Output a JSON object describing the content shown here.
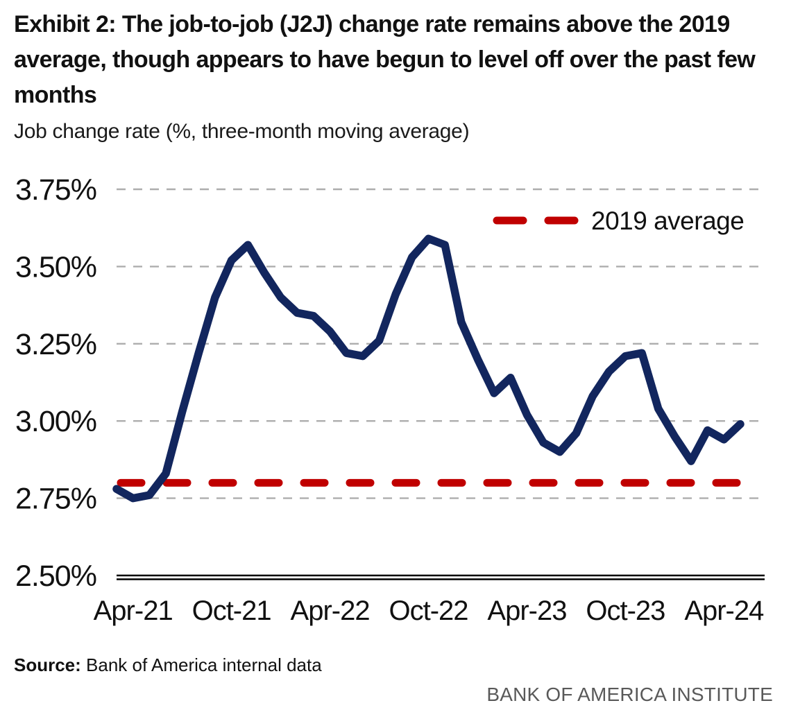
{
  "exhibit": {
    "title": "Exhibit 2: The job-to-job (J2J) change rate remains above the 2019 average, though appears to have begun to level off over the past few months",
    "subtitle": "Job change rate (%, three-month moving average)",
    "source_label": "Source:",
    "source_text": "Bank of America internal data",
    "brand_footer": "BANK OF AMERICA INSTITUTE"
  },
  "colors": {
    "series_line": "#12265E",
    "reference_line": "#C00000",
    "gridline": "#ADADAD",
    "axis": "#000000",
    "text": "#111111",
    "footer_gray": "#595959"
  },
  "chart_data": {
    "type": "line",
    "title": "Job change rate (%, three-month moving average)",
    "x": [
      "Mar-21",
      "Apr-21",
      "May-21",
      "Jun-21",
      "Jul-21",
      "Aug-21",
      "Sep-21",
      "Oct-21",
      "Nov-21",
      "Dec-21",
      "Jan-22",
      "Feb-22",
      "Mar-22",
      "Apr-22",
      "May-22",
      "Jun-22",
      "Jul-22",
      "Aug-22",
      "Sep-22",
      "Oct-22",
      "Nov-22",
      "Dec-22",
      "Jan-23",
      "Feb-23",
      "Mar-23",
      "Apr-23",
      "May-23",
      "Jun-23",
      "Jul-23",
      "Aug-23",
      "Sep-23",
      "Oct-23",
      "Nov-23",
      "Dec-23",
      "Jan-24",
      "Feb-24",
      "Mar-24",
      "Apr-24",
      "May-24"
    ],
    "series": [
      {
        "name": "Job change rate (%, three-month moving average)",
        "color": "#12265E",
        "values": [
          2.78,
          2.75,
          2.76,
          2.83,
          3.03,
          3.22,
          3.4,
          3.52,
          3.57,
          3.48,
          3.4,
          3.35,
          3.34,
          3.29,
          3.22,
          3.21,
          3.26,
          3.41,
          3.53,
          3.59,
          3.57,
          3.32,
          3.2,
          3.09,
          3.14,
          3.02,
          2.93,
          2.9,
          2.96,
          3.08,
          3.16,
          3.21,
          3.22,
          3.04,
          2.95,
          2.87,
          2.97,
          2.94,
          2.99
        ]
      }
    ],
    "reference_line": {
      "label": "2019 average",
      "value": 2.8,
      "color": "#C00000",
      "style": "dashed"
    },
    "x_tick_labels": [
      "Apr-21",
      "Oct-21",
      "Apr-22",
      "Oct-22",
      "Apr-23",
      "Oct-23",
      "Apr-24"
    ],
    "x_tick_first_index": 1,
    "x_tick_step": 6,
    "y_ticks": [
      {
        "label": "3.75%",
        "value": 3.75
      },
      {
        "label": "3.50%",
        "value": 3.5
      },
      {
        "label": "3.25%",
        "value": 3.25
      },
      {
        "label": "3.00%",
        "value": 3.0
      },
      {
        "label": "2.75%",
        "value": 2.75
      },
      {
        "label": "2.50%",
        "value": 2.5
      }
    ],
    "ylim": [
      2.5,
      3.75
    ],
    "grid": "horizontal-dashed",
    "legend_position": "top-right"
  }
}
